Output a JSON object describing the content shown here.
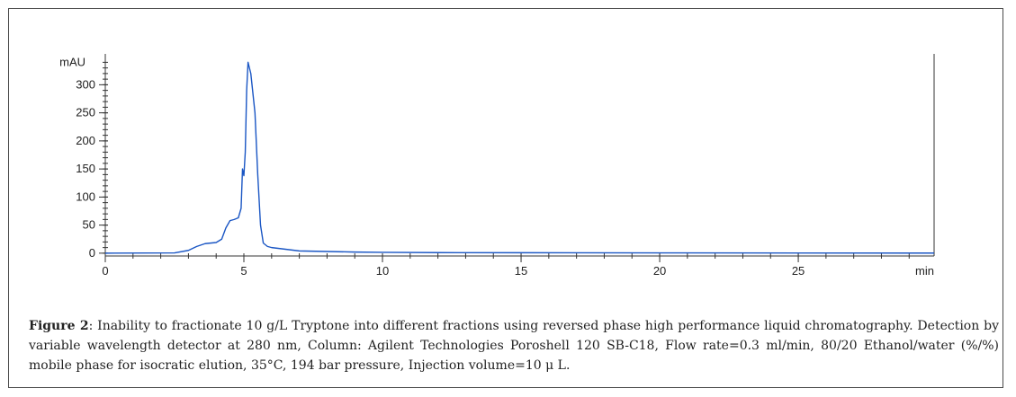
{
  "figure": {
    "label": "Figure 2",
    "caption": ": Inability to fractionate 10 g/L Tryptone into different fractions using reversed phase high performance liquid chromatography. Detection by variable wavelength detector at 280 nm, Column: Agilent Technologies Poroshell 120 SB-C18, Flow rate=0.3 ml/min, 80/20 Ethanol/water (%/%) mobile phase for isocratic elution, 35°C, 194 bar pressure, Injection volume=10 μ L."
  },
  "chart_data": {
    "type": "line",
    "title": "",
    "xlabel": "min",
    "ylabel": "mAU",
    "xlim": [
      0,
      29.9
    ],
    "ylim": [
      -5,
      355
    ],
    "x_ticks": [
      0,
      5,
      10,
      15,
      20,
      25
    ],
    "y_ticks": [
      0,
      50,
      100,
      150,
      200,
      250,
      300
    ],
    "grid": false,
    "series": [
      {
        "color": "#1a56c4",
        "points": [
          [
            0,
            0
          ],
          [
            2.5,
            0.5
          ],
          [
            3.0,
            5
          ],
          [
            3.3,
            12
          ],
          [
            3.6,
            17
          ],
          [
            4.0,
            19
          ],
          [
            4.2,
            25
          ],
          [
            4.35,
            45
          ],
          [
            4.5,
            58
          ],
          [
            4.65,
            60
          ],
          [
            4.8,
            63
          ],
          [
            4.9,
            80
          ],
          [
            4.95,
            150
          ],
          [
            5.0,
            138
          ],
          [
            5.05,
            180
          ],
          [
            5.1,
            290
          ],
          [
            5.15,
            340
          ],
          [
            5.25,
            320
          ],
          [
            5.4,
            250
          ],
          [
            5.5,
            140
          ],
          [
            5.6,
            50
          ],
          [
            5.7,
            18
          ],
          [
            5.85,
            12
          ],
          [
            6.0,
            10
          ],
          [
            6.5,
            7
          ],
          [
            7.0,
            4
          ],
          [
            8.0,
            3
          ],
          [
            9.0,
            2
          ],
          [
            10.0,
            1.5
          ],
          [
            12.0,
            1
          ],
          [
            15.0,
            0.8
          ],
          [
            20.0,
            0.5
          ],
          [
            25.0,
            0.3
          ],
          [
            29.9,
            0.2
          ]
        ]
      }
    ]
  }
}
